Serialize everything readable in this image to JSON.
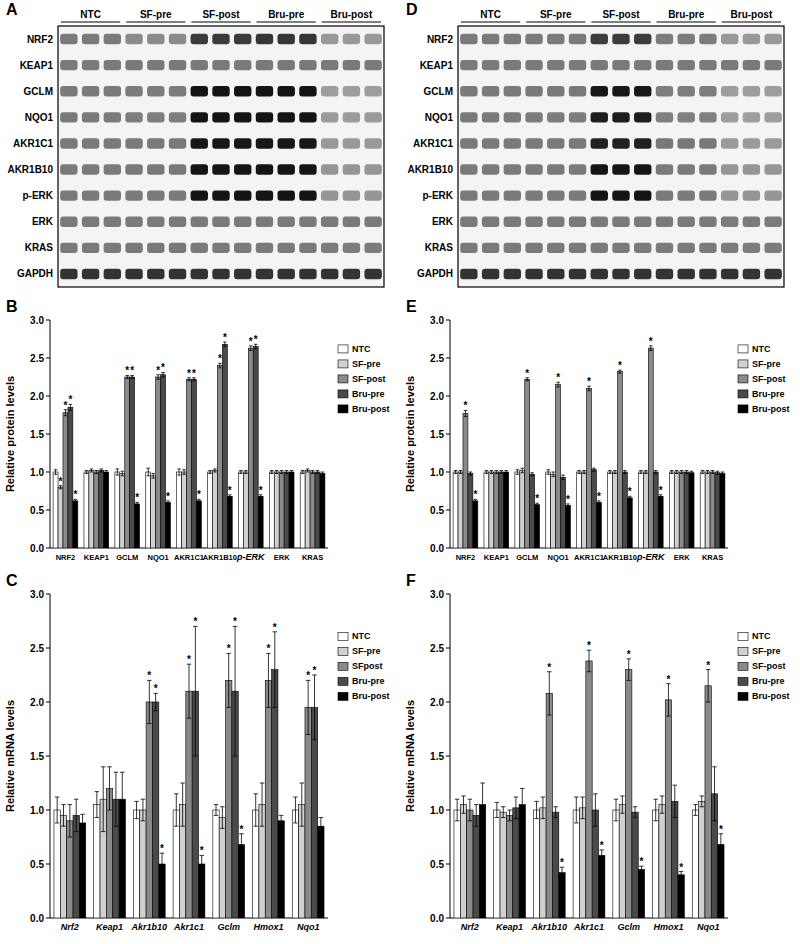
{
  "chart_data": [
    {
      "type": "blot",
      "title": "A",
      "groups": [
        "NTC",
        "SF-pre",
        "SF-post",
        "Bru-pre",
        "Bru-post"
      ],
      "lanes_per_group": 3,
      "rows": [
        "NRF2",
        "KEAP1",
        "GCLM",
        "NQO1",
        "AKR1C1",
        "AKR1B10",
        "p-ERK",
        "ERK",
        "KRAS",
        "GAPDH"
      ]
    },
    {
      "type": "bar",
      "title": "B",
      "y_label": "Relative protein levels",
      "categories": [
        "NRF2",
        "KEAP1",
        "GCLM",
        "NQO1",
        "AKR1C1",
        "AKR1B10",
        "p-ERK",
        "ERK",
        "KRAS"
      ],
      "ylim": [
        0,
        3
      ],
      "yticks": [
        {
          "value": 0,
          "label": "0.0"
        },
        0.5,
        {
          "value": 1,
          "label": "1.0"
        },
        1.5,
        {
          "value": 2,
          "label": "2.0"
        },
        2.5,
        {
          "value": 3,
          "label": "3.0"
        }
      ],
      "grid": false,
      "legend": "right",
      "series": [
        {
          "name": "NTC",
          "color": "#ffffff",
          "values": [
            1.0,
            1.0,
            1.0,
            1.0,
            1.0,
            1.0,
            1.0,
            1.0,
            1.0
          ],
          "errors": [
            0.03,
            0.02,
            0.04,
            0.05,
            0.04,
            0.02,
            0.02,
            0.02,
            0.02
          ],
          "annotations": [
            null,
            null,
            null,
            null,
            null,
            null,
            null,
            null,
            null
          ]
        },
        {
          "name": "SF-pre",
          "color": "#d0d0d0",
          "values": [
            0.8,
            1.02,
            0.98,
            0.95,
            1.0,
            1.02,
            1.0,
            1.0,
            1.02
          ],
          "errors": [
            0.02,
            0.02,
            0.03,
            0.03,
            0.03,
            0.02,
            0.02,
            0.02,
            0.02
          ],
          "annotations": [
            "*",
            null,
            null,
            null,
            null,
            null,
            null,
            null,
            null
          ]
        },
        {
          "name": "SF-post",
          "color": "#8a8a8a",
          "values": [
            1.78,
            1.0,
            2.25,
            2.25,
            2.22,
            2.4,
            2.63,
            1.0,
            1.0
          ],
          "errors": [
            0.04,
            0.02,
            0.02,
            0.03,
            0.02,
            0.03,
            0.03,
            0.02,
            0.02
          ],
          "annotations": [
            "*",
            null,
            "*",
            "*",
            "*",
            "*",
            "*",
            null,
            null
          ]
        },
        {
          "name": "Bru-pre",
          "color": "#4a4a4a",
          "values": [
            1.85,
            1.02,
            2.25,
            2.28,
            2.22,
            2.68,
            2.65,
            1.0,
            1.0
          ],
          "errors": [
            0.04,
            0.02,
            0.02,
            0.03,
            0.02,
            0.03,
            0.03,
            0.02,
            0.02
          ],
          "annotations": [
            "*",
            null,
            "*",
            "*",
            "*",
            "*",
            "*",
            null,
            null
          ]
        },
        {
          "name": "Bru-post",
          "color": "#000000",
          "values": [
            0.62,
            1.0,
            0.58,
            0.6,
            0.62,
            0.68,
            0.68,
            1.0,
            0.98
          ],
          "errors": [
            0.02,
            0.02,
            0.02,
            0.02,
            0.02,
            0.02,
            0.02,
            0.02,
            0.02
          ],
          "annotations": [
            "*",
            null,
            "*",
            "*",
            "*",
            "*",
            "*",
            null,
            null
          ]
        }
      ]
    },
    {
      "type": "bar",
      "title": "C",
      "y_label": "Relative mRNA levels",
      "categories": [
        "Nrf2",
        "Keap1",
        "Akr1b10",
        "Akr1c1",
        "Gclm",
        "Hmox1",
        "Nqo1"
      ],
      "ylim": [
        0,
        3
      ],
      "yticks": [
        {
          "value": 0,
          "label": "0.0"
        },
        0.5,
        {
          "value": 1,
          "label": "1.0"
        },
        1.5,
        {
          "value": 2,
          "label": "2.0"
        },
        2.5,
        {
          "value": 3,
          "label": "3.0"
        }
      ],
      "grid": false,
      "legend": "right",
      "series": [
        {
          "name": "NTC",
          "color": "#ffffff",
          "values": [
            1.0,
            1.05,
            1.0,
            1.0,
            1.0,
            1.0,
            1.0
          ],
          "errors": [
            0.12,
            0.12,
            0.08,
            0.15,
            0.05,
            0.15,
            0.12
          ],
          "annotations": [
            null,
            null,
            null,
            null,
            null,
            null,
            null
          ]
        },
        {
          "name": "SF-pre",
          "color": "#d0d0d0",
          "values": [
            0.95,
            1.1,
            1.0,
            1.05,
            0.93,
            1.05,
            1.05
          ],
          "errors": [
            0.1,
            0.3,
            0.1,
            0.2,
            0.1,
            0.2,
            0.2
          ],
          "annotations": [
            null,
            null,
            null,
            null,
            null,
            null,
            null
          ]
        },
        {
          "name": "SFpost",
          "color": "#8a8a8a",
          "values": [
            0.9,
            1.2,
            2.0,
            2.1,
            2.2,
            2.2,
            1.95
          ],
          "errors": [
            0.15,
            0.2,
            0.2,
            0.25,
            0.25,
            0.25,
            0.25
          ],
          "annotations": [
            null,
            null,
            "*",
            "*",
            "*",
            "*",
            "*"
          ]
        },
        {
          "name": "Bru-pre",
          "color": "#4a4a4a",
          "values": [
            0.95,
            1.1,
            2.0,
            2.1,
            2.1,
            2.3,
            1.95
          ],
          "errors": [
            0.15,
            0.25,
            0.08,
            0.6,
            0.6,
            0.35,
            0.3
          ],
          "annotations": [
            null,
            null,
            "*",
            "*",
            "*",
            "*",
            "*"
          ]
        },
        {
          "name": "Bru-post",
          "color": "#000000",
          "values": [
            0.88,
            1.1,
            0.5,
            0.5,
            0.68,
            0.9,
            0.85
          ],
          "errors": [
            0.08,
            0.25,
            0.1,
            0.08,
            0.1,
            0.05,
            0.08
          ],
          "annotations": [
            null,
            null,
            "*",
            "*",
            "*",
            null,
            null
          ]
        }
      ]
    },
    {
      "type": "blot",
      "title": "D",
      "groups": [
        "NTC",
        "SF-pre",
        "SF-post",
        "Bru-pre",
        "Bru-post"
      ],
      "lanes_per_group": 3,
      "rows": [
        "NRF2",
        "KEAP1",
        "GCLM",
        "NQO1",
        "AKR1C1",
        "AKR1B10",
        "p-ERK",
        "ERK",
        "KRAS",
        "GAPDH"
      ]
    },
    {
      "type": "bar",
      "title": "E",
      "y_label": "Relative protein levels",
      "categories": [
        "NRF2",
        "KEAP1",
        "GCLM",
        "NQO1",
        "AKR1C1",
        "AKR1B10",
        "p-ERK",
        "ERK",
        "KRAS"
      ],
      "ylim": [
        0,
        3
      ],
      "yticks": [
        {
          "value": 0,
          "label": "0.0"
        },
        0.5,
        {
          "value": 1,
          "label": "1.0"
        },
        1.5,
        {
          "value": 2,
          "label": "2.0"
        },
        2.5,
        {
          "value": 3,
          "label": "3.0"
        }
      ],
      "grid": false,
      "legend": "right",
      "series": [
        {
          "name": "NTC",
          "color": "#ffffff",
          "values": [
            1.0,
            1.0,
            1.0,
            1.0,
            1.0,
            1.0,
            1.0,
            1.0,
            1.0
          ],
          "errors": [
            0.02,
            0.02,
            0.03,
            0.03,
            0.02,
            0.02,
            0.02,
            0.02,
            0.02
          ],
          "annotations": [
            null,
            null,
            null,
            null,
            null,
            null,
            null,
            null,
            null
          ]
        },
        {
          "name": "SF-pre",
          "color": "#d0d0d0",
          "values": [
            1.0,
            1.0,
            1.02,
            0.97,
            1.0,
            1.0,
            1.0,
            1.0,
            1.0
          ],
          "errors": [
            0.02,
            0.02,
            0.03,
            0.03,
            0.02,
            0.02,
            0.02,
            0.02,
            0.02
          ],
          "annotations": [
            null,
            null,
            null,
            null,
            null,
            null,
            null,
            null,
            null
          ]
        },
        {
          "name": "SF-post",
          "color": "#8a8a8a",
          "values": [
            1.77,
            1.0,
            2.22,
            2.15,
            2.1,
            2.32,
            2.63,
            1.0,
            1.0
          ],
          "errors": [
            0.04,
            0.02,
            0.02,
            0.03,
            0.03,
            0.02,
            0.03,
            0.02,
            0.02
          ],
          "annotations": [
            "*",
            null,
            "*",
            "*",
            "*",
            "*",
            "*",
            null,
            null
          ]
        },
        {
          "name": "Bru-pre",
          "color": "#4a4a4a",
          "values": [
            0.98,
            1.0,
            0.97,
            0.93,
            1.03,
            1.0,
            1.0,
            1.0,
            0.99
          ],
          "errors": [
            0.02,
            0.02,
            0.02,
            0.03,
            0.02,
            0.02,
            0.02,
            0.02,
            0.02
          ],
          "annotations": [
            null,
            null,
            null,
            null,
            null,
            null,
            null,
            null,
            null
          ]
        },
        {
          "name": "Bru-post",
          "color": "#000000",
          "values": [
            0.62,
            1.0,
            0.57,
            0.56,
            0.6,
            0.66,
            0.68,
            0.99,
            0.98
          ],
          "errors": [
            0.02,
            0.02,
            0.02,
            0.02,
            0.02,
            0.02,
            0.02,
            0.02,
            0.02
          ],
          "annotations": [
            "*",
            null,
            "*",
            "*",
            "*",
            "*",
            "*",
            null,
            null
          ]
        }
      ]
    },
    {
      "type": "bar",
      "title": "F",
      "y_label": "Relative mRNA levels",
      "categories": [
        "Nrf2",
        "Keap1",
        "Akr1b10",
        "Akr1c1",
        "Gclm",
        "Hmox1",
        "Nqo1"
      ],
      "ylim": [
        0,
        3
      ],
      "yticks": [
        {
          "value": 0,
          "label": "0.0"
        },
        0.5,
        {
          "value": 1,
          "label": "1.0"
        },
        1.5,
        {
          "value": 2,
          "label": "2.0"
        },
        2.5,
        {
          "value": 3,
          "label": "3.0"
        }
      ],
      "grid": false,
      "legend": "right",
      "series": [
        {
          "name": "NTC",
          "color": "#ffffff",
          "values": [
            1.0,
            1.0,
            1.0,
            1.0,
            1.0,
            1.0,
            1.0
          ],
          "errors": [
            0.1,
            0.07,
            0.08,
            0.12,
            0.1,
            0.1,
            0.05
          ],
          "annotations": [
            null,
            null,
            null,
            null,
            null,
            null,
            null
          ]
        },
        {
          "name": "SF-pre",
          "color": "#d0d0d0",
          "values": [
            1.05,
            0.98,
            1.02,
            1.02,
            1.05,
            1.05,
            1.08
          ],
          "errors": [
            0.08,
            0.05,
            0.1,
            0.1,
            0.08,
            0.08,
            0.05
          ],
          "annotations": [
            null,
            null,
            null,
            null,
            null,
            null,
            null
          ]
        },
        {
          "name": "SF-post",
          "color": "#8a8a8a",
          "values": [
            1.0,
            0.95,
            2.08,
            2.38,
            2.3,
            2.02,
            2.15
          ],
          "errors": [
            0.1,
            0.05,
            0.2,
            0.1,
            0.1,
            0.15,
            0.15
          ],
          "annotations": [
            null,
            null,
            "*",
            "*",
            "*",
            "*",
            "*"
          ]
        },
        {
          "name": "Bru-pre",
          "color": "#4a4a4a",
          "values": [
            0.95,
            1.02,
            0.98,
            1.0,
            0.98,
            1.08,
            1.15
          ],
          "errors": [
            0.1,
            0.1,
            0.05,
            0.15,
            0.05,
            0.15,
            0.25
          ],
          "annotations": [
            null,
            null,
            null,
            null,
            null,
            null,
            null
          ]
        },
        {
          "name": "Bru-post",
          "color": "#000000",
          "values": [
            1.05,
            1.05,
            0.42,
            0.58,
            0.45,
            0.4,
            0.68
          ],
          "errors": [
            0.2,
            0.15,
            0.05,
            0.05,
            0.03,
            0.03,
            0.1
          ],
          "annotations": [
            null,
            null,
            "*",
            "*",
            "*",
            "*",
            "*"
          ]
        }
      ]
    }
  ]
}
